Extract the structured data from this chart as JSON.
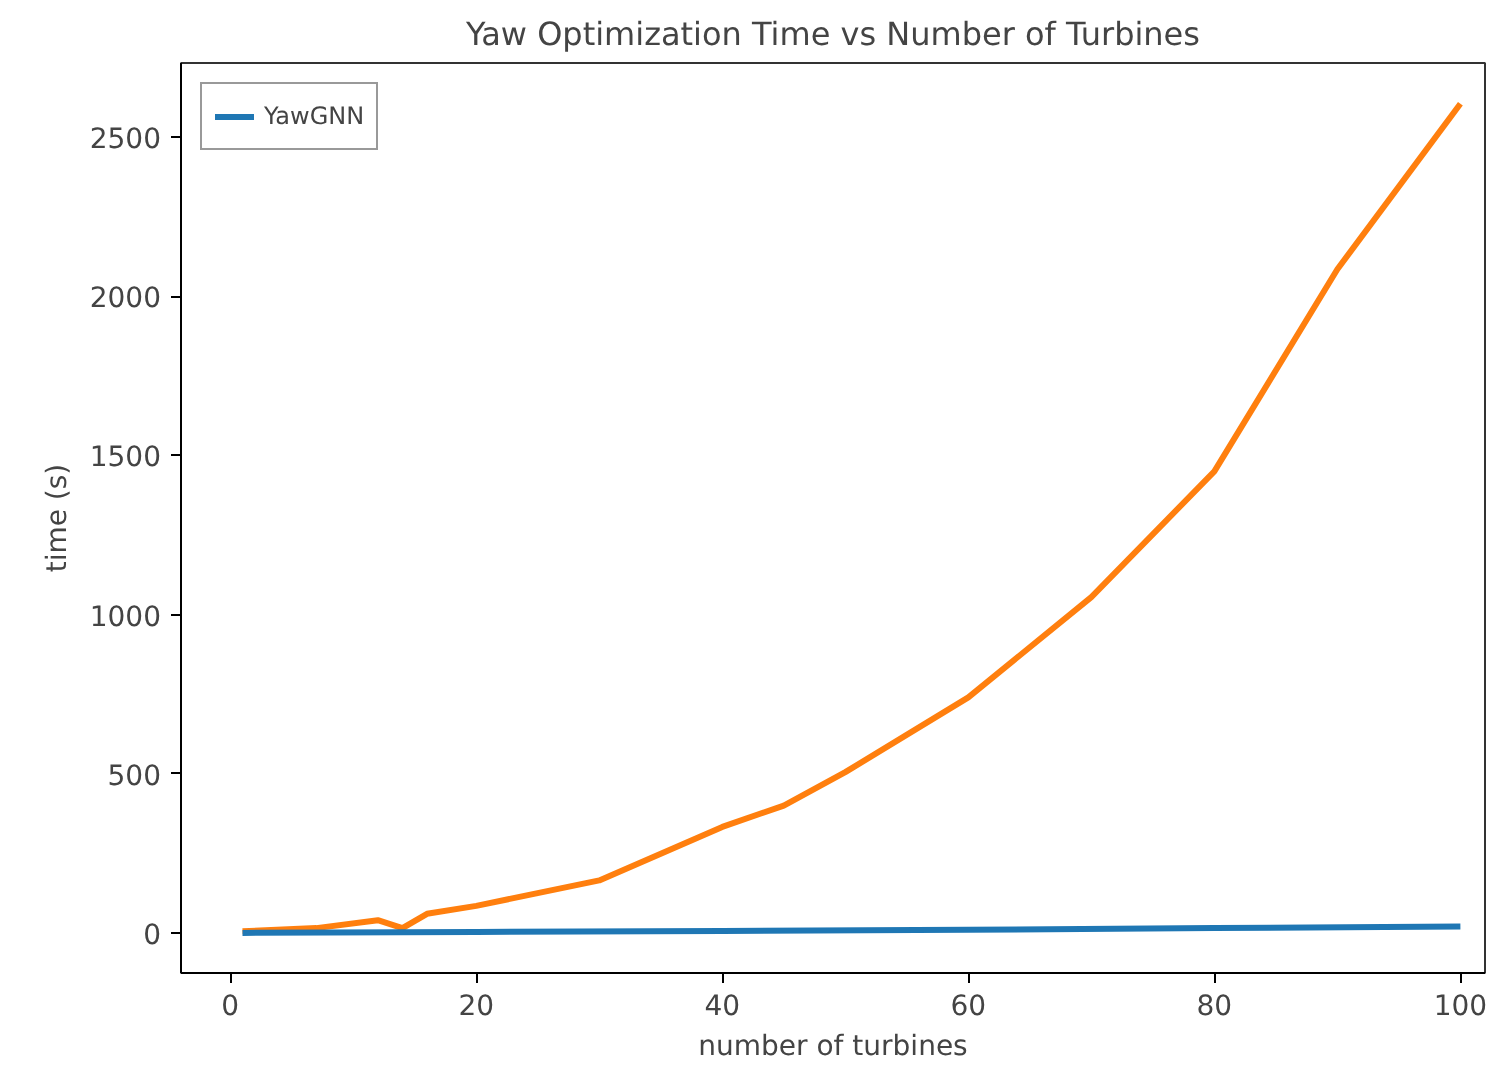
{
  "chart_data": {
    "type": "line",
    "title": "Yaw Optimization Time vs Number of Turbines",
    "xlabel": "number of turbines",
    "ylabel": "time (s)",
    "xlim": [
      -4,
      102
    ],
    "ylim": [
      -126,
      2733
    ],
    "xticks": [
      0,
      20,
      40,
      60,
      80,
      100
    ],
    "yticks": [
      0,
      500,
      1000,
      1500,
      2000,
      2500
    ],
    "grid": false,
    "legend": "top left",
    "line_style": "solid",
    "series": [
      {
        "color": "#ff7f0e",
        "x": [
          1,
          7,
          12,
          14,
          16,
          20,
          30,
          40,
          45,
          50,
          60,
          70,
          80,
          90,
          100
        ],
        "values": [
          5,
          15,
          40,
          15,
          60,
          85,
          165,
          333,
          400,
          505,
          740,
          1055,
          1450,
          2085,
          2605
        ]
      },
      {
        "name": "YawGNN",
        "color": "#1f77b4",
        "x": [
          1,
          20,
          40,
          60,
          80,
          100
        ],
        "values": [
          0,
          3,
          6,
          10,
          15,
          20
        ]
      }
    ]
  }
}
